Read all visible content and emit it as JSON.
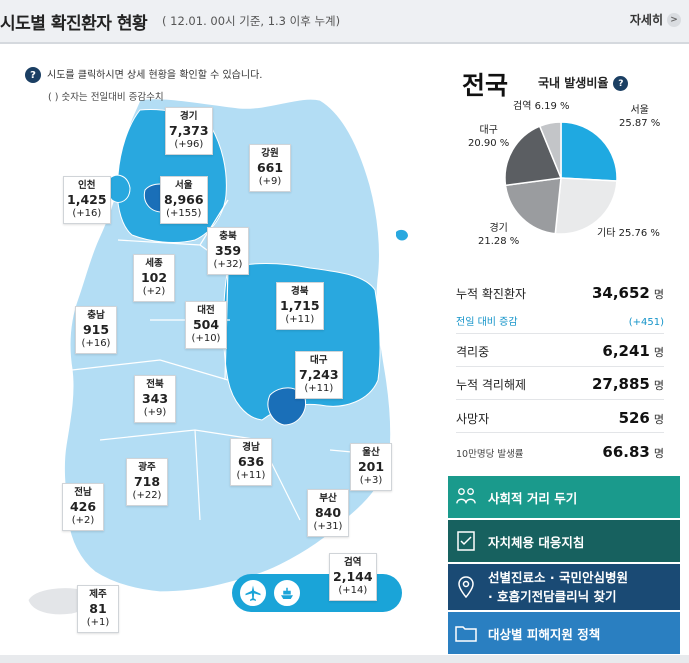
{
  "header": {
    "title": "시도별 확진환자 현황",
    "subtitle": "( 12.01. 00시 기준, 1.3 이후 누계)",
    "more_label": "자세히",
    "more_icon": "chevron-right-icon"
  },
  "map": {
    "help_text": "시도를 클릭하시면 상세 현황을 확인할 수 있습니다.",
    "help_note": "( ) 숫자는 전일대비 증감수치",
    "regions": [
      {
        "name": "경기",
        "value": "7,373",
        "delta": "(+96)"
      },
      {
        "name": "강원",
        "value": "661",
        "delta": "(+9)"
      },
      {
        "name": "인천",
        "value": "1,425",
        "delta": "(+16)"
      },
      {
        "name": "서울",
        "value": "8,966",
        "delta": "(+155)"
      },
      {
        "name": "충북",
        "value": "359",
        "delta": "(+32)"
      },
      {
        "name": "세종",
        "value": "102",
        "delta": "(+2)"
      },
      {
        "name": "대전",
        "value": "504",
        "delta": "(+10)"
      },
      {
        "name": "경북",
        "value": "1,715",
        "delta": "(+11)"
      },
      {
        "name": "충남",
        "value": "915",
        "delta": "(+16)"
      },
      {
        "name": "대구",
        "value": "7,243",
        "delta": "(+11)"
      },
      {
        "name": "전북",
        "value": "343",
        "delta": "(+9)"
      },
      {
        "name": "경남",
        "value": "636",
        "delta": "(+11)"
      },
      {
        "name": "울산",
        "value": "201",
        "delta": "(+3)"
      },
      {
        "name": "광주",
        "value": "718",
        "delta": "(+22)"
      },
      {
        "name": "부산",
        "value": "840",
        "delta": "(+31)"
      },
      {
        "name": "전남",
        "value": "426",
        "delta": "(+2)"
      },
      {
        "name": "검역",
        "value": "2,144",
        "delta": "(+14)"
      },
      {
        "name": "제주",
        "value": "81",
        "delta": "(+1)"
      }
    ],
    "quarantine_icons": [
      "airplane-icon",
      "ship-icon"
    ]
  },
  "summary": {
    "title": "전국",
    "subtitle": "국내 발생비율",
    "pie": [
      {
        "label": "서울",
        "value": "25.87 %",
        "pct": 25.87,
        "color": "#1fa9e1"
      },
      {
        "label": "기타",
        "value": "25.76 %",
        "pct": 25.76,
        "color": "#e9eaeb"
      },
      {
        "label": "경기",
        "value": "21.28 %",
        "pct": 21.28,
        "color": "#9a9c9f"
      },
      {
        "label": "대구",
        "value": "20.90 %",
        "pct": 20.9,
        "color": "#5b5e62"
      },
      {
        "label": "검역",
        "value": "6.19 %",
        "pct": 6.19,
        "color": "#c3c5c8"
      }
    ],
    "stats": [
      {
        "label": "누적 확진환자",
        "value": "34,652",
        "unit": "명"
      },
      {
        "label": "전일 대비 증감",
        "value": "(+451)",
        "unit": ""
      },
      {
        "label": "격리중",
        "value": "6,241",
        "unit": "명"
      },
      {
        "label": "누적 격리해제",
        "value": "27,885",
        "unit": "명"
      },
      {
        "label": "사망자",
        "value": "526",
        "unit": "명"
      },
      {
        "label": "10만명당 발생률",
        "value": "66.83",
        "unit": "명"
      }
    ]
  },
  "buttons": [
    {
      "label": "사회적 거리 두기",
      "color": "#1a9a8c",
      "icon": "people-icon"
    },
    {
      "label": "자치체용 대응지침",
      "color": "#17615f",
      "icon": "document-check-icon"
    },
    {
      "label": "선별진료소 · 국민안심병원",
      "label2": "· 호흡기전담클리닉 찾기",
      "color": "#1a4a74",
      "icon": "location-pin-icon"
    },
    {
      "label": "대상별 피해지원 정책",
      "color": "#2a7fc1",
      "icon": "folder-icon"
    }
  ]
}
